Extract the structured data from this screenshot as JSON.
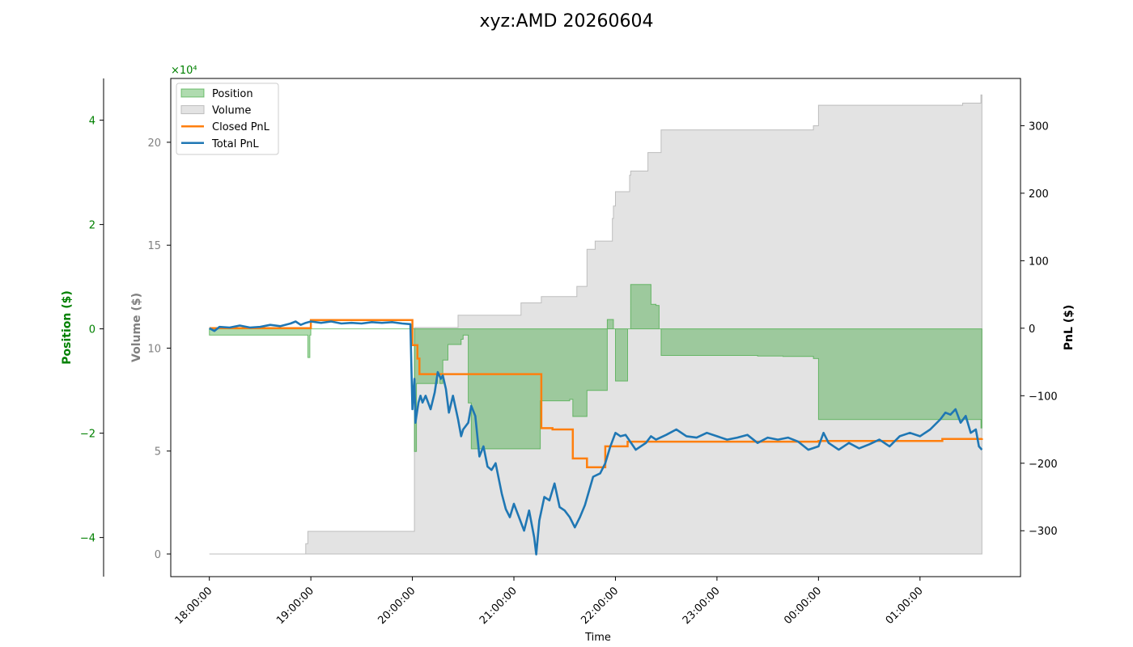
{
  "chart_data": {
    "type": "area",
    "title": "xyz:AMD 20260604",
    "xlabel": "Time",
    "x_tick_labels": [
      "18:00:00",
      "19:00:00",
      "20:00:00",
      "21:00:00",
      "22:00:00",
      "23:00:00",
      "00:00:00",
      "01:00:00"
    ],
    "x_range_hours": [
      17.62,
      25.99
    ],
    "axes": {
      "position": {
        "label": "Position ($)",
        "side": "left-outer",
        "color": "#008000",
        "ylim": [
          -47500,
          48000
        ],
        "ticks": [
          -40000,
          -20000,
          0,
          20000,
          40000
        ],
        "tick_labels": [
          "−4",
          "−2",
          "0",
          "2",
          "4"
        ],
        "offset_text": "×10⁴"
      },
      "volume": {
        "label": "Volume ($)",
        "side": "left",
        "color": "#808080",
        "ylim": [
          -1100,
          23100
        ],
        "ticks": [
          0,
          5000,
          10000,
          15000,
          20000
        ],
        "tick_labels": [
          "0",
          "5",
          "10",
          "15",
          "20"
        ]
      },
      "pnl": {
        "label": "PnL ($)",
        "side": "right",
        "color": "#000000",
        "ylim": [
          -368,
          370
        ],
        "ticks": [
          -300,
          -200,
          -100,
          0,
          100,
          200,
          300
        ],
        "tick_labels": [
          "−300",
          "−200",
          "−100",
          "0",
          "100",
          "200",
          "300"
        ]
      }
    },
    "legend": {
      "placement": "upper-left",
      "items": [
        {
          "label": "Position",
          "kind": "patch",
          "color": "#2ca02c"
        },
        {
          "label": "Volume",
          "kind": "patch",
          "color": "#c8c8c8"
        },
        {
          "label": "Closed PnL",
          "kind": "line",
          "color": "#ff7f0e"
        },
        {
          "label": "Total PnL",
          "kind": "line",
          "color": "#1f77b4"
        }
      ]
    },
    "series": [
      {
        "name": "Position",
        "axis": "position",
        "kind": "step-area",
        "color": "#2ca02c",
        "points": [
          [
            18.0,
            -1200
          ],
          [
            18.97,
            -5500
          ],
          [
            18.99,
            -1200
          ],
          [
            19.0,
            0
          ],
          [
            20.0,
            0
          ],
          [
            20.02,
            -23500
          ],
          [
            20.04,
            -10500
          ],
          [
            20.06,
            -10500
          ],
          [
            20.25,
            -9000
          ],
          [
            20.27,
            -10500
          ],
          [
            20.3,
            -6000
          ],
          [
            20.35,
            -3000
          ],
          [
            20.48,
            -2000
          ],
          [
            20.5,
            -1200
          ],
          [
            20.55,
            -14200
          ],
          [
            20.58,
            -23000
          ],
          [
            21.25,
            -23000
          ],
          [
            21.26,
            -13800
          ],
          [
            21.37,
            -13800
          ],
          [
            21.55,
            -13500
          ],
          [
            21.58,
            -16800
          ],
          [
            21.7,
            -16800
          ],
          [
            21.72,
            -11800
          ],
          [
            21.9,
            -11800
          ],
          [
            21.92,
            1800
          ],
          [
            21.98,
            0
          ],
          [
            22.0,
            -10000
          ],
          [
            22.1,
            -10000
          ],
          [
            22.12,
            0
          ],
          [
            22.15,
            8500
          ],
          [
            22.32,
            8500
          ],
          [
            22.35,
            4700
          ],
          [
            22.4,
            4500
          ],
          [
            22.42,
            4500
          ],
          [
            22.43,
            0
          ],
          [
            22.45,
            -5100
          ],
          [
            23.4,
            -5200
          ],
          [
            23.42,
            -5200
          ],
          [
            23.65,
            -5300
          ],
          [
            23.92,
            -5300
          ],
          [
            23.95,
            -5700
          ],
          [
            24.0,
            -17400
          ],
          [
            25.2,
            -17400
          ],
          [
            25.58,
            -17400
          ],
          [
            25.6,
            -19000
          ],
          [
            25.61,
            -19000
          ]
        ]
      },
      {
        "name": "Volume",
        "axis": "volume",
        "kind": "step-area",
        "color": "#c8c8c8",
        "points": [
          [
            18.0,
            0
          ],
          [
            18.93,
            0
          ],
          [
            18.95,
            500
          ],
          [
            18.97,
            1100
          ],
          [
            20.02,
            1100
          ],
          [
            20.02,
            11000
          ],
          [
            20.35,
            11000
          ],
          [
            20.45,
            11600
          ],
          [
            20.5,
            11600
          ],
          [
            21.05,
            11600
          ],
          [
            21.07,
            12200
          ],
          [
            21.25,
            12200
          ],
          [
            21.27,
            12500
          ],
          [
            21.6,
            12500
          ],
          [
            21.62,
            13000
          ],
          [
            21.72,
            14800
          ],
          [
            21.78,
            14800
          ],
          [
            21.8,
            15200
          ],
          [
            21.95,
            15200
          ],
          [
            21.97,
            16300
          ],
          [
            21.98,
            16900
          ],
          [
            22.0,
            17600
          ],
          [
            22.12,
            17600
          ],
          [
            22.14,
            18400
          ],
          [
            22.15,
            18600
          ],
          [
            22.3,
            18600
          ],
          [
            22.32,
            19500
          ],
          [
            22.42,
            19500
          ],
          [
            22.45,
            20600
          ],
          [
            23.92,
            20600
          ],
          [
            23.95,
            20800
          ],
          [
            24.0,
            21800
          ],
          [
            25.4,
            21800
          ],
          [
            25.42,
            21900
          ],
          [
            25.58,
            21900
          ],
          [
            25.6,
            22300
          ],
          [
            25.61,
            22300
          ]
        ]
      },
      {
        "name": "Closed PnL",
        "axis": "pnl",
        "kind": "step-line",
        "color": "#ff7f0e",
        "points": [
          [
            18.0,
            0
          ],
          [
            18.95,
            0
          ],
          [
            19.0,
            12
          ],
          [
            19.98,
            12
          ],
          [
            20.0,
            -25
          ],
          [
            20.05,
            -45
          ],
          [
            20.07,
            -68
          ],
          [
            21.25,
            -68
          ],
          [
            21.27,
            -148
          ],
          [
            21.37,
            -148
          ],
          [
            21.38,
            -150
          ],
          [
            21.55,
            -150
          ],
          [
            21.58,
            -193
          ],
          [
            21.7,
            -193
          ],
          [
            21.72,
            -206
          ],
          [
            21.85,
            -206
          ],
          [
            21.9,
            -175
          ],
          [
            22.1,
            -175
          ],
          [
            22.12,
            -168
          ],
          [
            24.0,
            -167
          ],
          [
            25.2,
            -167
          ],
          [
            25.22,
            -164
          ],
          [
            25.6,
            -164
          ],
          [
            25.61,
            -163
          ]
        ]
      },
      {
        "name": "Total PnL",
        "axis": "pnl",
        "kind": "line",
        "color": "#1f77b4",
        "points": [
          [
            18.0,
            0
          ],
          [
            18.05,
            -4
          ],
          [
            18.1,
            2
          ],
          [
            18.2,
            1
          ],
          [
            18.3,
            4
          ],
          [
            18.4,
            1
          ],
          [
            18.5,
            2
          ],
          [
            18.6,
            5
          ],
          [
            18.7,
            3
          ],
          [
            18.8,
            7
          ],
          [
            18.85,
            10
          ],
          [
            18.9,
            5
          ],
          [
            18.95,
            8
          ],
          [
            19.0,
            10
          ],
          [
            19.1,
            8
          ],
          [
            19.2,
            10
          ],
          [
            19.3,
            7
          ],
          [
            19.4,
            8
          ],
          [
            19.5,
            7
          ],
          [
            19.6,
            9
          ],
          [
            19.7,
            8
          ],
          [
            19.8,
            9
          ],
          [
            19.9,
            7
          ],
          [
            19.98,
            6
          ],
          [
            20.0,
            -120
          ],
          [
            20.02,
            -75
          ],
          [
            20.03,
            -140
          ],
          [
            20.06,
            -110
          ],
          [
            20.08,
            -100
          ],
          [
            20.1,
            -110
          ],
          [
            20.13,
            -100
          ],
          [
            20.18,
            -120
          ],
          [
            20.22,
            -95
          ],
          [
            20.25,
            -65
          ],
          [
            20.28,
            -75
          ],
          [
            20.3,
            -70
          ],
          [
            20.33,
            -90
          ],
          [
            20.36,
            -125
          ],
          [
            20.4,
            -100
          ],
          [
            20.45,
            -135
          ],
          [
            20.48,
            -160
          ],
          [
            20.5,
            -150
          ],
          [
            20.55,
            -140
          ],
          [
            20.58,
            -115
          ],
          [
            20.62,
            -130
          ],
          [
            20.66,
            -190
          ],
          [
            20.7,
            -175
          ],
          [
            20.74,
            -205
          ],
          [
            20.78,
            -210
          ],
          [
            20.82,
            -200
          ],
          [
            20.88,
            -245
          ],
          [
            20.92,
            -268
          ],
          [
            20.96,
            -280
          ],
          [
            21.0,
            -260
          ],
          [
            21.05,
            -280
          ],
          [
            21.1,
            -300
          ],
          [
            21.15,
            -270
          ],
          [
            21.2,
            -310
          ],
          [
            21.22,
            -335
          ],
          [
            21.25,
            -285
          ],
          [
            21.3,
            -250
          ],
          [
            21.35,
            -255
          ],
          [
            21.4,
            -230
          ],
          [
            21.45,
            -265
          ],
          [
            21.5,
            -270
          ],
          [
            21.55,
            -280
          ],
          [
            21.6,
            -295
          ],
          [
            21.65,
            -280
          ],
          [
            21.7,
            -262
          ],
          [
            21.78,
            -220
          ],
          [
            21.85,
            -215
          ],
          [
            21.9,
            -200
          ],
          [
            21.95,
            -175
          ],
          [
            22.0,
            -155
          ],
          [
            22.05,
            -160
          ],
          [
            22.1,
            -158
          ],
          [
            22.2,
            -180
          ],
          [
            22.3,
            -170
          ],
          [
            22.35,
            -160
          ],
          [
            22.4,
            -165
          ],
          [
            22.5,
            -158
          ],
          [
            22.6,
            -150
          ],
          [
            22.7,
            -160
          ],
          [
            22.8,
            -162
          ],
          [
            22.9,
            -155
          ],
          [
            23.0,
            -160
          ],
          [
            23.1,
            -165
          ],
          [
            23.2,
            -162
          ],
          [
            23.3,
            -158
          ],
          [
            23.4,
            -170
          ],
          [
            23.5,
            -162
          ],
          [
            23.6,
            -165
          ],
          [
            23.7,
            -162
          ],
          [
            23.8,
            -168
          ],
          [
            23.9,
            -180
          ],
          [
            24.0,
            -175
          ],
          [
            24.05,
            -155
          ],
          [
            24.1,
            -170
          ],
          [
            24.2,
            -180
          ],
          [
            24.3,
            -170
          ],
          [
            24.4,
            -178
          ],
          [
            24.5,
            -172
          ],
          [
            24.6,
            -165
          ],
          [
            24.7,
            -175
          ],
          [
            24.8,
            -160
          ],
          [
            24.9,
            -155
          ],
          [
            25.0,
            -160
          ],
          [
            25.1,
            -150
          ],
          [
            25.2,
            -135
          ],
          [
            25.25,
            -125
          ],
          [
            25.3,
            -128
          ],
          [
            25.35,
            -120
          ],
          [
            25.4,
            -140
          ],
          [
            25.45,
            -130
          ],
          [
            25.5,
            -155
          ],
          [
            25.55,
            -150
          ],
          [
            25.58,
            -175
          ],
          [
            25.61,
            -180
          ]
        ]
      }
    ]
  }
}
